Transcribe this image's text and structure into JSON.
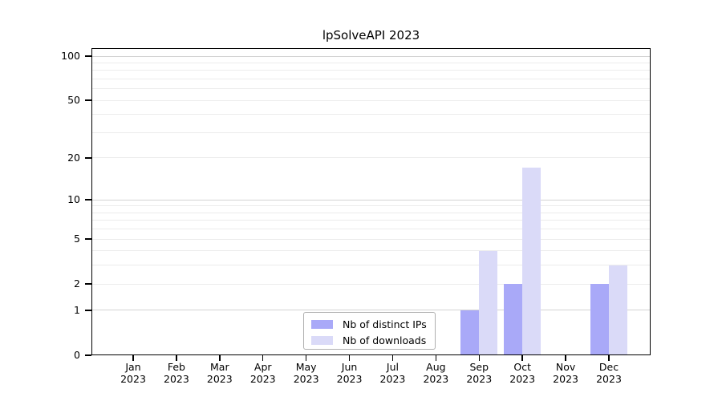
{
  "title": "lpSolveAPI 2023",
  "chart_data": {
    "type": "bar",
    "title": "lpSolveAPI 2023",
    "categories": [
      "Jan 2023",
      "Feb 2023",
      "Mar 2023",
      "Apr 2023",
      "May 2023",
      "Jun 2023",
      "Jul 2023",
      "Aug 2023",
      "Sep 2023",
      "Oct 2023",
      "Nov 2023",
      "Dec 2023"
    ],
    "series": [
      {
        "name": "Nb of distinct IPs",
        "color": "#a9a9f8",
        "values": [
          0,
          0,
          0,
          0,
          0,
          0,
          0,
          0,
          1,
          2,
          0,
          2
        ]
      },
      {
        "name": "Nb of downloads",
        "color": "#dadaf8",
        "values": [
          0,
          0,
          0,
          0,
          0,
          0,
          0,
          0,
          4,
          17,
          0,
          3
        ]
      }
    ],
    "xlabel": "",
    "ylabel": "",
    "ylim": [
      0,
      100
    ],
    "y_scale": "log1p",
    "y_ticks": [
      0,
      1,
      2,
      5,
      10,
      20,
      50,
      100
    ],
    "grid": {
      "minor_values": [
        2,
        3,
        4,
        5,
        6,
        7,
        8,
        9,
        20,
        30,
        40,
        50,
        60,
        70,
        80,
        90
      ],
      "major_values": [
        1,
        10,
        100
      ],
      "minor_color": "#ececec",
      "major_color": "#d2d2d2"
    },
    "legend": {
      "position": "bottom-center-inside",
      "entries": [
        "Nb of distinct IPs",
        "Nb of downloads"
      ]
    }
  },
  "colors": {
    "background": "#ffffff",
    "axis": "#000000",
    "text": "#000000",
    "legend_border": "#b0b0b0"
  }
}
